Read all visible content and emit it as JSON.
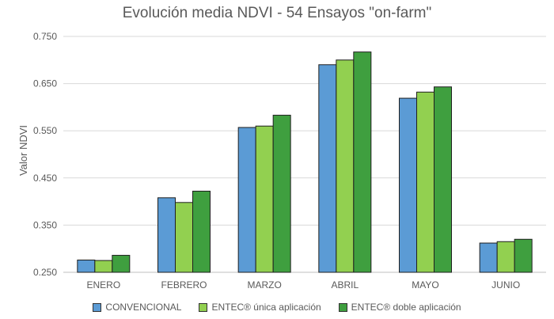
{
  "chart_data": {
    "type": "bar",
    "title": "Evolución media NDVI - 54 Ensayos \"on-farm\"",
    "xlabel": "",
    "ylabel": "Valor NDVI",
    "ylim": [
      0.25,
      0.75
    ],
    "yticks": [
      "0.250",
      "0.350",
      "0.450",
      "0.550",
      "0.650",
      "0.750"
    ],
    "categories": [
      "ENERO",
      "FEBRERO",
      "MARZO",
      "ABRIL",
      "MAYO",
      "JUNIO"
    ],
    "series": [
      {
        "name": "CONVENCIONAL",
        "color": "#5b9bd5",
        "values": [
          0.276,
          0.408,
          0.557,
          0.69,
          0.619,
          0.312
        ]
      },
      {
        "name": "ENTEC® única aplicación",
        "color": "#92d050",
        "values": [
          0.275,
          0.398,
          0.56,
          0.7,
          0.632,
          0.315
        ]
      },
      {
        "name": "ENTEC® doble aplicación",
        "color": "#3f9f3f",
        "values": [
          0.286,
          0.422,
          0.583,
          0.717,
          0.643,
          0.32
        ]
      }
    ],
    "grid": true,
    "legend_position": "bottom"
  }
}
